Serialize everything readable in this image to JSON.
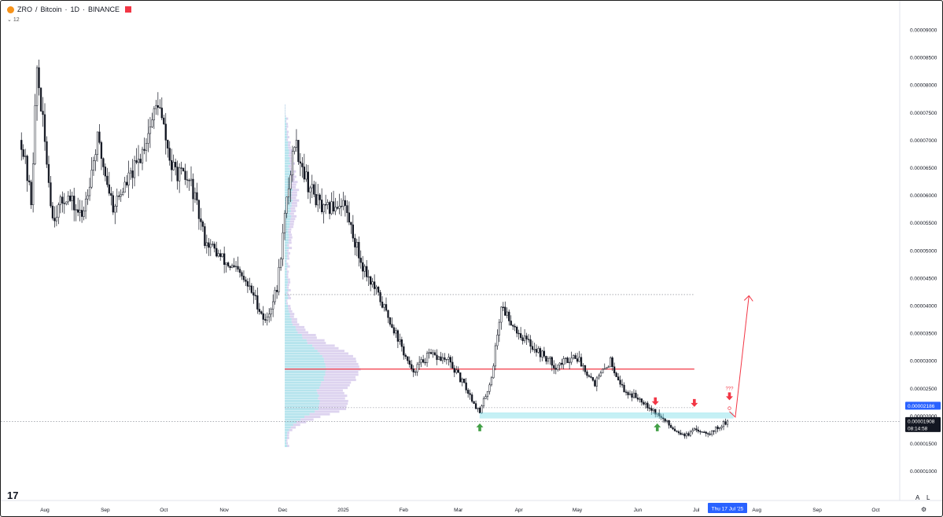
{
  "header": {
    "symbol": "ZRO",
    "separator": "/",
    "quote": "Bitcoin",
    "interval": "1D",
    "exchange": "BINANCE",
    "indicator_label": "12",
    "symbol_icon": "bitcoin-logo-icon",
    "flag_color": "#f23645"
  },
  "controls": {
    "auto_label": "A",
    "log_label": "L",
    "logo_text": "17"
  },
  "chart_data": {
    "type": "candlestick",
    "yticks": [
      "0.00009000",
      "0.00008500",
      "0.00008000",
      "0.00007500",
      "0.00007000",
      "0.00006500",
      "0.00006000",
      "0.00005500",
      "0.00005000",
      "0.00004500",
      "0.00004000",
      "0.00003500",
      "0.00003000",
      "0.00002500",
      "0.00002000",
      "0.00001500",
      "0.00001000"
    ],
    "ylim": [
      5.5e-06,
      9.45e-05
    ],
    "xticks": [
      "Aug",
      "Sep",
      "Oct",
      "Nov",
      "Dec",
      "2025",
      "Feb",
      "Mar",
      "Apr",
      "May",
      "Jun",
      "Jul",
      "Aug",
      "Sep",
      "Oct"
    ],
    "xtick_dates": [
      "2024-08-01",
      "2024-09-01",
      "2024-10-01",
      "2024-11-01",
      "2024-12-01",
      "2025-01-01",
      "2025-02-01",
      "2025-03-01",
      "2025-04-01",
      "2025-05-01",
      "2025-06-01",
      "2025-07-01",
      "2025-08-01",
      "2025-09-01",
      "2025-10-01"
    ],
    "x_date_label": "Thu 17 Jul '25",
    "x_date_value": "2025-07-17",
    "price_close_label": "0.00001908",
    "price_close": 1.908e-05,
    "countdown": "08:14:58",
    "price_marker_label": "0.00002186",
    "price_marker": 2.186e-05,
    "price_dim_label": "0.00002000",
    "up_color": "#26a69a",
    "down_color": "#131722",
    "candle_color": "#131722",
    "accent_blue": "#2962ff",
    "poc_line_color": "#f23645",
    "projection_color": "#f23645",
    "anchors": [
      [
        "2024-07-20",
        7e-05
      ],
      [
        "2024-07-25",
        5.9e-05
      ],
      [
        "2024-07-28",
        8.3e-05
      ],
      [
        "2024-08-05",
        5.6e-05
      ],
      [
        "2024-08-12",
        6e-05
      ],
      [
        "2024-08-20",
        5.6e-05
      ],
      [
        "2024-08-28",
        7e-05
      ],
      [
        "2024-09-05",
        5.8e-05
      ],
      [
        "2024-09-18",
        6.6e-05
      ],
      [
        "2024-09-28",
        7.7e-05
      ],
      [
        "2024-10-05",
        6.5e-05
      ],
      [
        "2024-10-15",
        6.2e-05
      ],
      [
        "2024-10-22",
        5.2e-05
      ],
      [
        "2024-11-01",
        4.8e-05
      ],
      [
        "2024-11-08",
        4.6e-05
      ],
      [
        "2024-11-16",
        4.2e-05
      ],
      [
        "2024-11-22",
        3.7e-05
      ],
      [
        "2024-11-28",
        4.3e-05
      ],
      [
        "2024-12-02",
        5.6e-05
      ],
      [
        "2024-12-07",
        7e-05
      ],
      [
        "2024-12-14",
        6.2e-05
      ],
      [
        "2024-12-22",
        5.7e-05
      ],
      [
        "2025-01-01",
        5.9e-05
      ],
      [
        "2025-01-10",
        4.8e-05
      ],
      [
        "2025-01-20",
        4.1e-05
      ],
      [
        "2025-01-28",
        3.5e-05
      ],
      [
        "2025-02-05",
        2.8e-05
      ],
      [
        "2025-02-14",
        3.1e-05
      ],
      [
        "2025-02-24",
        3e-05
      ],
      [
        "2025-03-05",
        2.5e-05
      ],
      [
        "2025-03-12",
        2.05e-05
      ],
      [
        "2025-03-18",
        2.7e-05
      ],
      [
        "2025-03-23",
        4e-05
      ],
      [
        "2025-04-01",
        3.5e-05
      ],
      [
        "2025-04-10",
        3.2e-05
      ],
      [
        "2025-04-20",
        2.9e-05
      ],
      [
        "2025-04-30",
        3.1e-05
      ],
      [
        "2025-05-10",
        2.6e-05
      ],
      [
        "2025-05-18",
        3e-05
      ],
      [
        "2025-05-25",
        2.45e-05
      ],
      [
        "2025-06-03",
        2.3e-05
      ],
      [
        "2025-06-12",
        2e-05
      ],
      [
        "2025-06-20",
        1.75e-05
      ],
      [
        "2025-06-26",
        1.65e-05
      ],
      [
        "2025-07-01",
        1.75e-05
      ],
      [
        "2025-07-08",
        1.7e-05
      ],
      [
        "2025-07-17",
        1.9e-05
      ]
    ],
    "volume_profile": {
      "start_date": "2024-12-02",
      "price_range": [
        1.43e-05,
        7.65e-05
      ],
      "poc_price": 2.85e-05,
      "max_extent_days": 12
    },
    "levels": [
      {
        "type": "dotted",
        "price": 4.2e-05,
        "from": "2024-12-02",
        "to": "2025-06-30"
      },
      {
        "type": "solid",
        "price": 2.85e-05,
        "from": "2024-12-02",
        "to": "2025-06-30"
      },
      {
        "type": "dotted",
        "price": 2.15e-05,
        "from": "2024-12-02",
        "to": "2025-06-30"
      },
      {
        "type": "dotted",
        "price": 1.9e-05,
        "from": "2024-07-01",
        "to": "2025-10-31"
      }
    ],
    "support_zone": {
      "from": "2025-03-12",
      "to": "2025-07-20",
      "top": 2.06e-05,
      "bottom": 1.96e-05
    },
    "markers": [
      {
        "kind": "up-arrow",
        "date": "2025-03-12",
        "price": 1.78e-05,
        "color": "#43a047"
      },
      {
        "kind": "up-arrow",
        "date": "2025-06-11",
        "price": 1.78e-05,
        "color": "#43a047"
      },
      {
        "kind": "down-arrow",
        "date": "2025-06-10",
        "price": 2.28e-05,
        "color": "#f23645"
      },
      {
        "kind": "down-arrow",
        "date": "2025-06-30",
        "price": 2.25e-05,
        "color": "#f23645"
      },
      {
        "kind": "down-arrow",
        "date": "2025-07-18",
        "price": 2.37e-05,
        "color": "#f23645"
      }
    ],
    "question_marks": {
      "text": "???",
      "date": "2025-07-18",
      "price": 2.47e-05
    },
    "projection_path": [
      [
        "2025-07-18",
        2.08e-05
      ],
      [
        "2025-07-21",
        1.98e-05
      ],
      [
        "2025-07-28",
        4.18e-05
      ]
    ]
  }
}
